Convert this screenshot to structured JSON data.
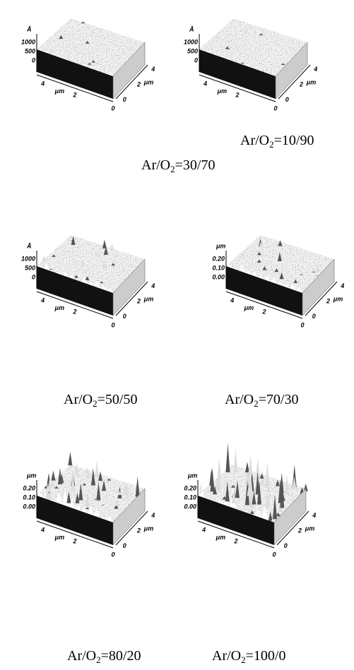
{
  "panels": [
    {
      "unit": "Å",
      "zticks": [
        "1000",
        "500",
        "0"
      ],
      "xticks": [
        "4",
        "2",
        "0"
      ],
      "xunit": "μm",
      "yticks": [
        "0",
        "2",
        "4"
      ],
      "yunit": "μm",
      "caption": {
        "prefix": "Ar/O",
        "sub": "2",
        "ratio": "=30/70"
      }
    },
    {
      "unit": "Å",
      "zticks": [
        "1000",
        "500",
        "0"
      ],
      "xticks": [
        "4",
        "2",
        "0"
      ],
      "xunit": "μm",
      "yticks": [
        "0",
        "2",
        "4"
      ],
      "yunit": "μm",
      "caption": {
        "prefix": "Ar/O",
        "sub": "2",
        "ratio": "=10/90"
      }
    },
    {
      "unit": "Å",
      "zticks": [
        "1000",
        "500",
        "0"
      ],
      "xticks": [
        "4",
        "2",
        "0"
      ],
      "xunit": "μm",
      "yticks": [
        "0",
        "2",
        "4"
      ],
      "yunit": "μm",
      "caption": {
        "prefix": "Ar/O",
        "sub": "2",
        "ratio": "=50/50"
      }
    },
    {
      "unit": "μm",
      "zticks": [
        "0.20",
        "0.10",
        "0.00"
      ],
      "xticks": [
        "4",
        "2",
        "0"
      ],
      "xunit": "μm",
      "yticks": [
        "0",
        "2",
        "4"
      ],
      "yunit": "μm",
      "caption": {
        "prefix": "Ar/O",
        "sub": "2",
        "ratio": "=70/30"
      }
    },
    {
      "unit": "μm",
      "zticks": [
        "0.20",
        "0.10",
        "0.00"
      ],
      "xticks": [
        "4",
        "2",
        "0"
      ],
      "xunit": "μm",
      "yticks": [
        "0",
        "2",
        "4"
      ],
      "yunit": "μm",
      "caption": {
        "prefix": "Ar/O",
        "sub": "2",
        "ratio": "=80/20"
      }
    },
    {
      "unit": "μm",
      "zticks": [
        "0.20",
        "0.10",
        "0.00"
      ],
      "xticks": [
        "4",
        "2",
        "0"
      ],
      "xunit": "μm",
      "yticks": [
        "0",
        "2",
        "4"
      ],
      "yunit": "μm",
      "caption": {
        "prefix": "Ar/O",
        "sub": "2",
        "ratio": "=100/0"
      }
    }
  ]
}
